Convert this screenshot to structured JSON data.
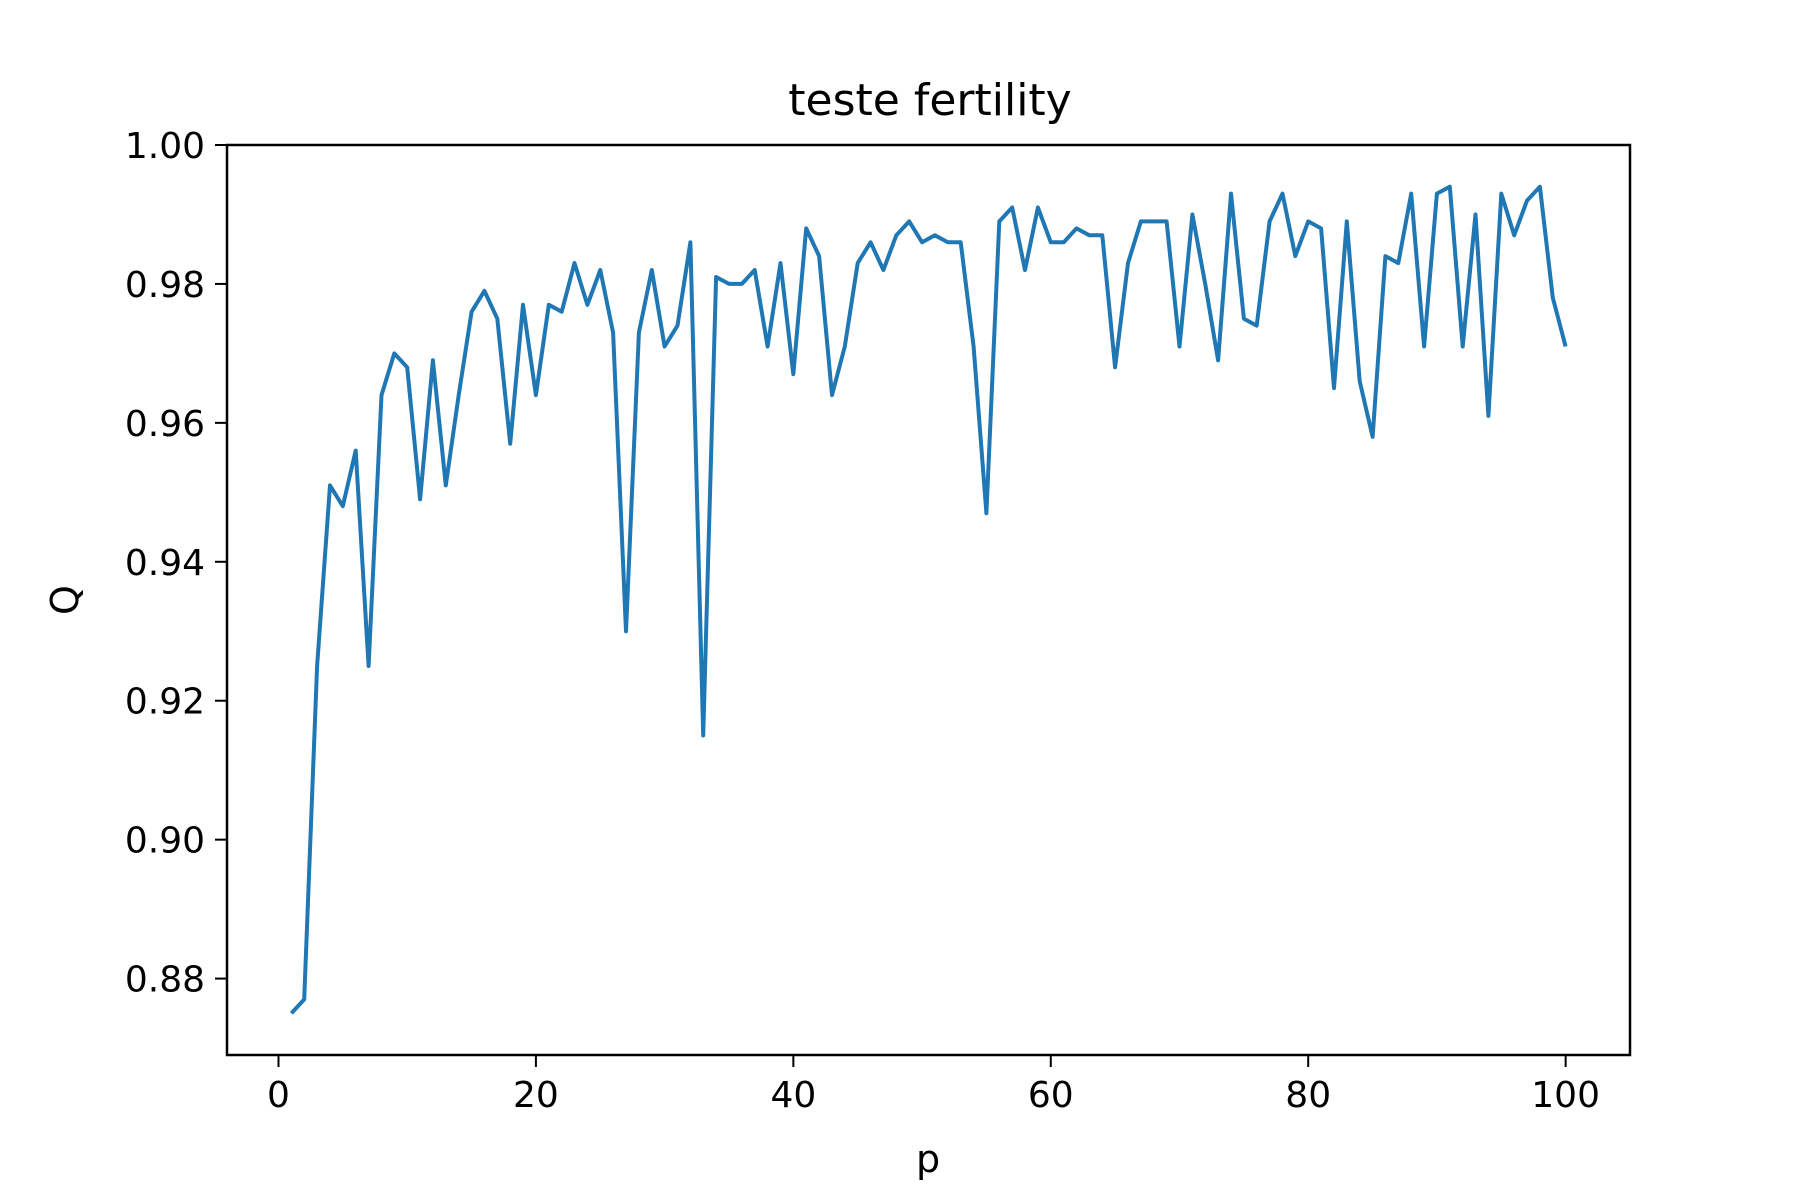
{
  "chart_data": {
    "type": "line",
    "title": "teste fertility",
    "xlabel": "p",
    "ylabel": "Q",
    "xlim": [
      -4,
      105
    ],
    "ylim": [
      0.869,
      1.0
    ],
    "grid": false,
    "xticks": [
      0,
      20,
      40,
      60,
      80,
      100
    ],
    "xtick_labels": [
      "0",
      "20",
      "40",
      "60",
      "80",
      "100"
    ],
    "yticks": [
      0.88,
      0.9,
      0.92,
      0.94,
      0.96,
      0.98,
      1.0
    ],
    "ytick_labels": [
      "0.88",
      "0.90",
      "0.92",
      "0.94",
      "0.96",
      "0.98",
      "1.00"
    ],
    "series": [
      {
        "color": "#1f77b4",
        "x": [
          1,
          2,
          3,
          4,
          5,
          6,
          7,
          8,
          9,
          10,
          11,
          12,
          13,
          14,
          15,
          16,
          17,
          18,
          19,
          20,
          21,
          22,
          23,
          24,
          25,
          26,
          27,
          28,
          29,
          30,
          31,
          32,
          33,
          34,
          35,
          36,
          37,
          38,
          39,
          40,
          41,
          42,
          43,
          44,
          45,
          46,
          47,
          48,
          49,
          50,
          51,
          52,
          53,
          54,
          55,
          56,
          57,
          58,
          59,
          60,
          61,
          62,
          63,
          64,
          65,
          66,
          67,
          68,
          69,
          70,
          71,
          72,
          73,
          74,
          75,
          76,
          77,
          78,
          79,
          80,
          81,
          82,
          83,
          84,
          85,
          86,
          87,
          88,
          89,
          90,
          91,
          92,
          93,
          94,
          95,
          96,
          97,
          98,
          99,
          100
        ],
        "y": [
          0.875,
          0.877,
          0.925,
          0.951,
          0.948,
          0.956,
          0.925,
          0.964,
          0.97,
          0.968,
          0.949,
          0.969,
          0.951,
          0.964,
          0.976,
          0.979,
          0.975,
          0.957,
          0.977,
          0.964,
          0.977,
          0.976,
          0.983,
          0.977,
          0.982,
          0.973,
          0.93,
          0.973,
          0.982,
          0.971,
          0.974,
          0.986,
          0.915,
          0.981,
          0.98,
          0.98,
          0.982,
          0.971,
          0.983,
          0.967,
          0.988,
          0.984,
          0.964,
          0.971,
          0.983,
          0.986,
          0.982,
          0.987,
          0.989,
          0.986,
          0.987,
          0.986,
          0.986,
          0.971,
          0.947,
          0.989,
          0.991,
          0.982,
          0.991,
          0.986,
          0.986,
          0.988,
          0.987,
          0.987,
          0.968,
          0.983,
          0.989,
          0.989,
          0.989,
          0.971,
          0.99,
          0.98,
          0.969,
          0.993,
          0.975,
          0.974,
          0.989,
          0.993,
          0.984,
          0.989,
          0.988,
          0.965,
          0.989,
          0.966,
          0.958,
          0.984,
          0.983,
          0.993,
          0.971,
          0.993,
          0.994,
          0.971,
          0.99,
          0.961,
          0.993,
          0.987,
          0.992,
          0.994,
          0.978,
          0.971
        ]
      }
    ]
  }
}
